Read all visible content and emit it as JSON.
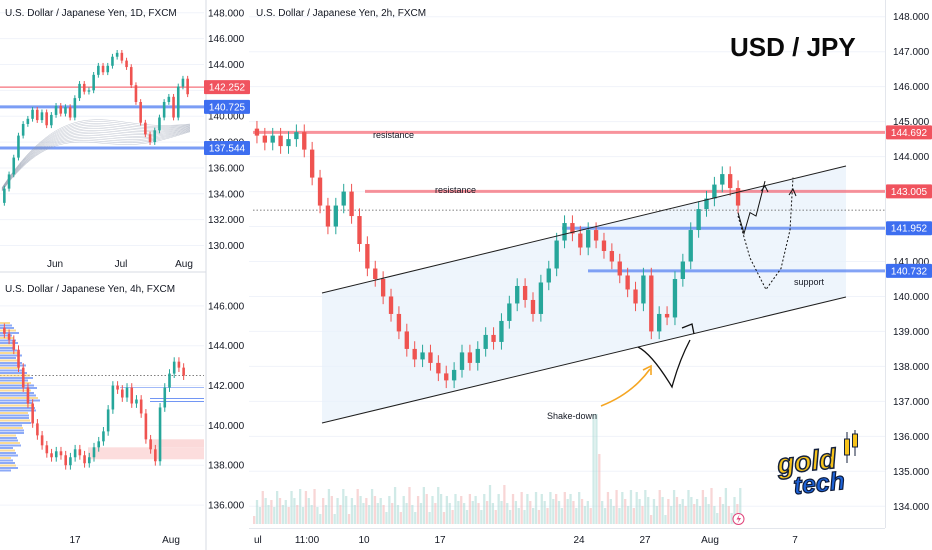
{
  "colors": {
    "up": "#26a69a",
    "down": "#ef5350",
    "red_line": "#f44d5b",
    "blue_line": "#4f7df2",
    "channel": "#1f1f1f",
    "fill": "#e8f1fb",
    "orange": "#f5a623",
    "logo_yellow": "#f7c31b",
    "logo_blue": "#1d62d8"
  },
  "chart_data": [
    {
      "type": "candlestick",
      "title": "U.S. Dollar / Japanese Yen, 1D, FXCM",
      "x_tick_labels": [
        "Jun",
        "Jul",
        "Aug"
      ],
      "y_tick_labels": [
        "148.000",
        "146.000",
        "144.000",
        "142.000",
        "140.000",
        "138.000",
        "136.000",
        "134.000",
        "132.000",
        "130.000"
      ],
      "ylim": [
        129.5,
        148.6
      ],
      "price_labels": [
        {
          "text": "142.252",
          "value": 142.252,
          "color": "red"
        },
        {
          "text": "140.725",
          "value": 140.725,
          "color": "blue"
        },
        {
          "text": "137.544",
          "value": 137.544,
          "color": "blue"
        }
      ],
      "series": [
        {
          "values": [
            134.4,
            135.5,
            136.8,
            138.5,
            139.4,
            139.8,
            140.5,
            139.7,
            140.3,
            139.3,
            140.1,
            140.8,
            140.2,
            140.7,
            139.9,
            141.4,
            142.5,
            141.9,
            142.0,
            143.2,
            143.9,
            143.4,
            143.9,
            144.6,
            144.9,
            144.3,
            143.8,
            142.4,
            141.1,
            139.5,
            138.6,
            138.0,
            138.9,
            139.9,
            141.1,
            141.5,
            139.9,
            142.3,
            142.9,
            141.7
          ]
        }
      ]
    },
    {
      "type": "candlestick",
      "title": "U.S. Dollar / Japanese Yen, 4h, FXCM",
      "x_tick_labels": [
        "17",
        "Aug"
      ],
      "y_tick_labels": [
        "146.000",
        "144.000",
        "142.000",
        "140.000",
        "138.000",
        "136.000"
      ],
      "ylim": [
        135.1,
        147.4
      ],
      "zones": [
        {
          "from": 138.9,
          "to": 138.3
        }
      ],
      "series": [
        {
          "values": [
            144.6,
            144.3,
            143.8,
            142.9,
            141.9,
            141.1,
            140.1,
            139.5,
            139.0,
            138.6,
            138.4,
            138.7,
            138.5,
            138.0,
            138.4,
            138.8,
            138.5,
            138.1,
            138.4,
            138.9,
            139.2,
            139.7,
            140.8,
            142.0,
            141.8,
            141.4,
            141.9,
            141.1,
            141.3,
            140.6,
            139.3,
            138.8,
            138.2,
            140.9,
            141.9,
            142.6,
            143.2,
            142.9,
            142.5
          ]
        }
      ]
    },
    {
      "type": "candlestick",
      "title": "U.S. Dollar / Japanese Yen, 2h, FXCM",
      "x_tick_labels": [
        "ul",
        "11:00",
        "10",
        "17",
        "24",
        "27",
        "Aug",
        "7"
      ],
      "y_tick_labels": [
        "148.000",
        "147.000",
        "146.000",
        "145.000",
        "144.000",
        "143.000",
        "142.000",
        "141.000",
        "140.000",
        "139.000",
        "138.000",
        "137.000",
        "136.000",
        "135.000",
        "134.000"
      ],
      "ylim": [
        133.55,
        148.25
      ],
      "price_labels": [
        {
          "text": "144.692",
          "value": 144.692,
          "color": "red"
        },
        {
          "text": "143.005",
          "value": 143.005,
          "color": "red"
        },
        {
          "text": "141.952",
          "value": 141.952,
          "color": "blue"
        },
        {
          "text": "140.732",
          "value": 140.732,
          "color": "blue"
        }
      ],
      "annotations": [
        "USD / JPY",
        "resistance",
        "resistance",
        "support",
        "Shake-down"
      ],
      "series": [
        {
          "values": [
            144.6,
            144.4,
            144.6,
            144.3,
            144.5,
            144.7,
            144.2,
            143.4,
            142.6,
            142.0,
            142.6,
            143.0,
            142.3,
            141.5,
            140.8,
            140.5,
            140.0,
            139.5,
            139.0,
            138.5,
            138.2,
            138.4,
            138.1,
            137.8,
            137.6,
            137.9,
            138.4,
            138.1,
            138.5,
            138.9,
            138.7,
            139.3,
            139.8,
            140.3,
            139.9,
            139.5,
            140.4,
            140.8,
            141.6,
            142.1,
            141.8,
            141.4,
            141.9,
            141.6,
            141.3,
            141.0,
            140.6,
            140.2,
            139.8,
            140.6,
            139.0,
            139.5,
            139.4,
            140.5,
            141.0,
            141.9,
            142.5,
            142.8,
            143.2,
            143.5,
            143.1,
            142.6
          ]
        }
      ]
    }
  ],
  "projections": [
    {
      "style": "solid",
      "values": [
        142.4,
        141.8,
        142.4,
        142.3,
        143.3
      ]
    },
    {
      "style": "dotted",
      "values": [
        142.3,
        141.1,
        140.2,
        140.8,
        141.9,
        143.4
      ]
    }
  ],
  "logo": {
    "line1": "gold",
    "line2": "tech"
  }
}
